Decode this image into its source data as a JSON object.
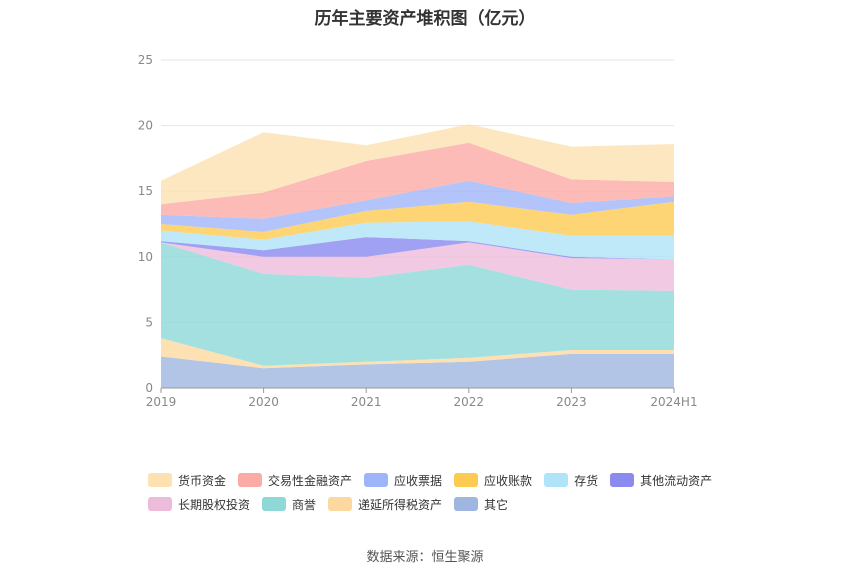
{
  "chart_data": {
    "type": "area",
    "title": "历年主要资产堆积图（亿元）",
    "source": "数据来源：恒生聚源",
    "categories": [
      "2019",
      "2020",
      "2021",
      "2022",
      "2023",
      "2024H1"
    ],
    "ylim": [
      0,
      25
    ],
    "yticks": [
      0,
      5,
      10,
      15,
      20,
      25
    ],
    "grid": true,
    "legend_position": "bottom",
    "series": [
      {
        "name": "其它",
        "color": "#9fb6e0",
        "values": [
          2.4,
          1.5,
          1.8,
          2.0,
          2.6,
          2.6
        ]
      },
      {
        "name": "递延所得税资产",
        "color": "#fdd9a0",
        "values": [
          1.4,
          0.2,
          0.2,
          0.3,
          0.3,
          0.3
        ]
      },
      {
        "name": "商誉",
        "color": "#8fd8d8",
        "values": [
          7.3,
          7.0,
          6.4,
          7.1,
          4.6,
          4.5
        ]
      },
      {
        "name": "长期股权投资",
        "color": "#edbcdb",
        "values": [
          0.0,
          1.3,
          1.6,
          1.7,
          2.4,
          2.4
        ]
      },
      {
        "name": "其他流动资产",
        "color": "#8a8af0",
        "values": [
          0.1,
          0.5,
          1.5,
          0.1,
          0.1,
          0.0
        ]
      },
      {
        "name": "存货",
        "color": "#afe3f7",
        "values": [
          0.8,
          0.8,
          1.1,
          1.5,
          1.6,
          1.8
        ]
      },
      {
        "name": "应收账款",
        "color": "#fecb52",
        "values": [
          0.5,
          0.6,
          0.9,
          1.5,
          1.6,
          2.6
        ]
      },
      {
        "name": "应收票据",
        "color": "#9fb5f9",
        "values": [
          0.7,
          1.0,
          0.8,
          1.6,
          0.9,
          0.4
        ]
      },
      {
        "name": "交易性金融资产",
        "color": "#fbaaa5",
        "values": [
          0.8,
          2.0,
          3.0,
          2.9,
          1.8,
          1.1
        ]
      },
      {
        "name": "货币资金",
        "color": "#fde1b0",
        "values": [
          1.8,
          4.6,
          1.2,
          1.4,
          2.5,
          2.9
        ]
      }
    ],
    "legend_order": [
      "货币资金",
      "交易性金融资产",
      "应收票据",
      "应收账款",
      "存货",
      "其他流动资产",
      "长期股权投资",
      "商誉",
      "递延所得税资产",
      "其它"
    ]
  }
}
